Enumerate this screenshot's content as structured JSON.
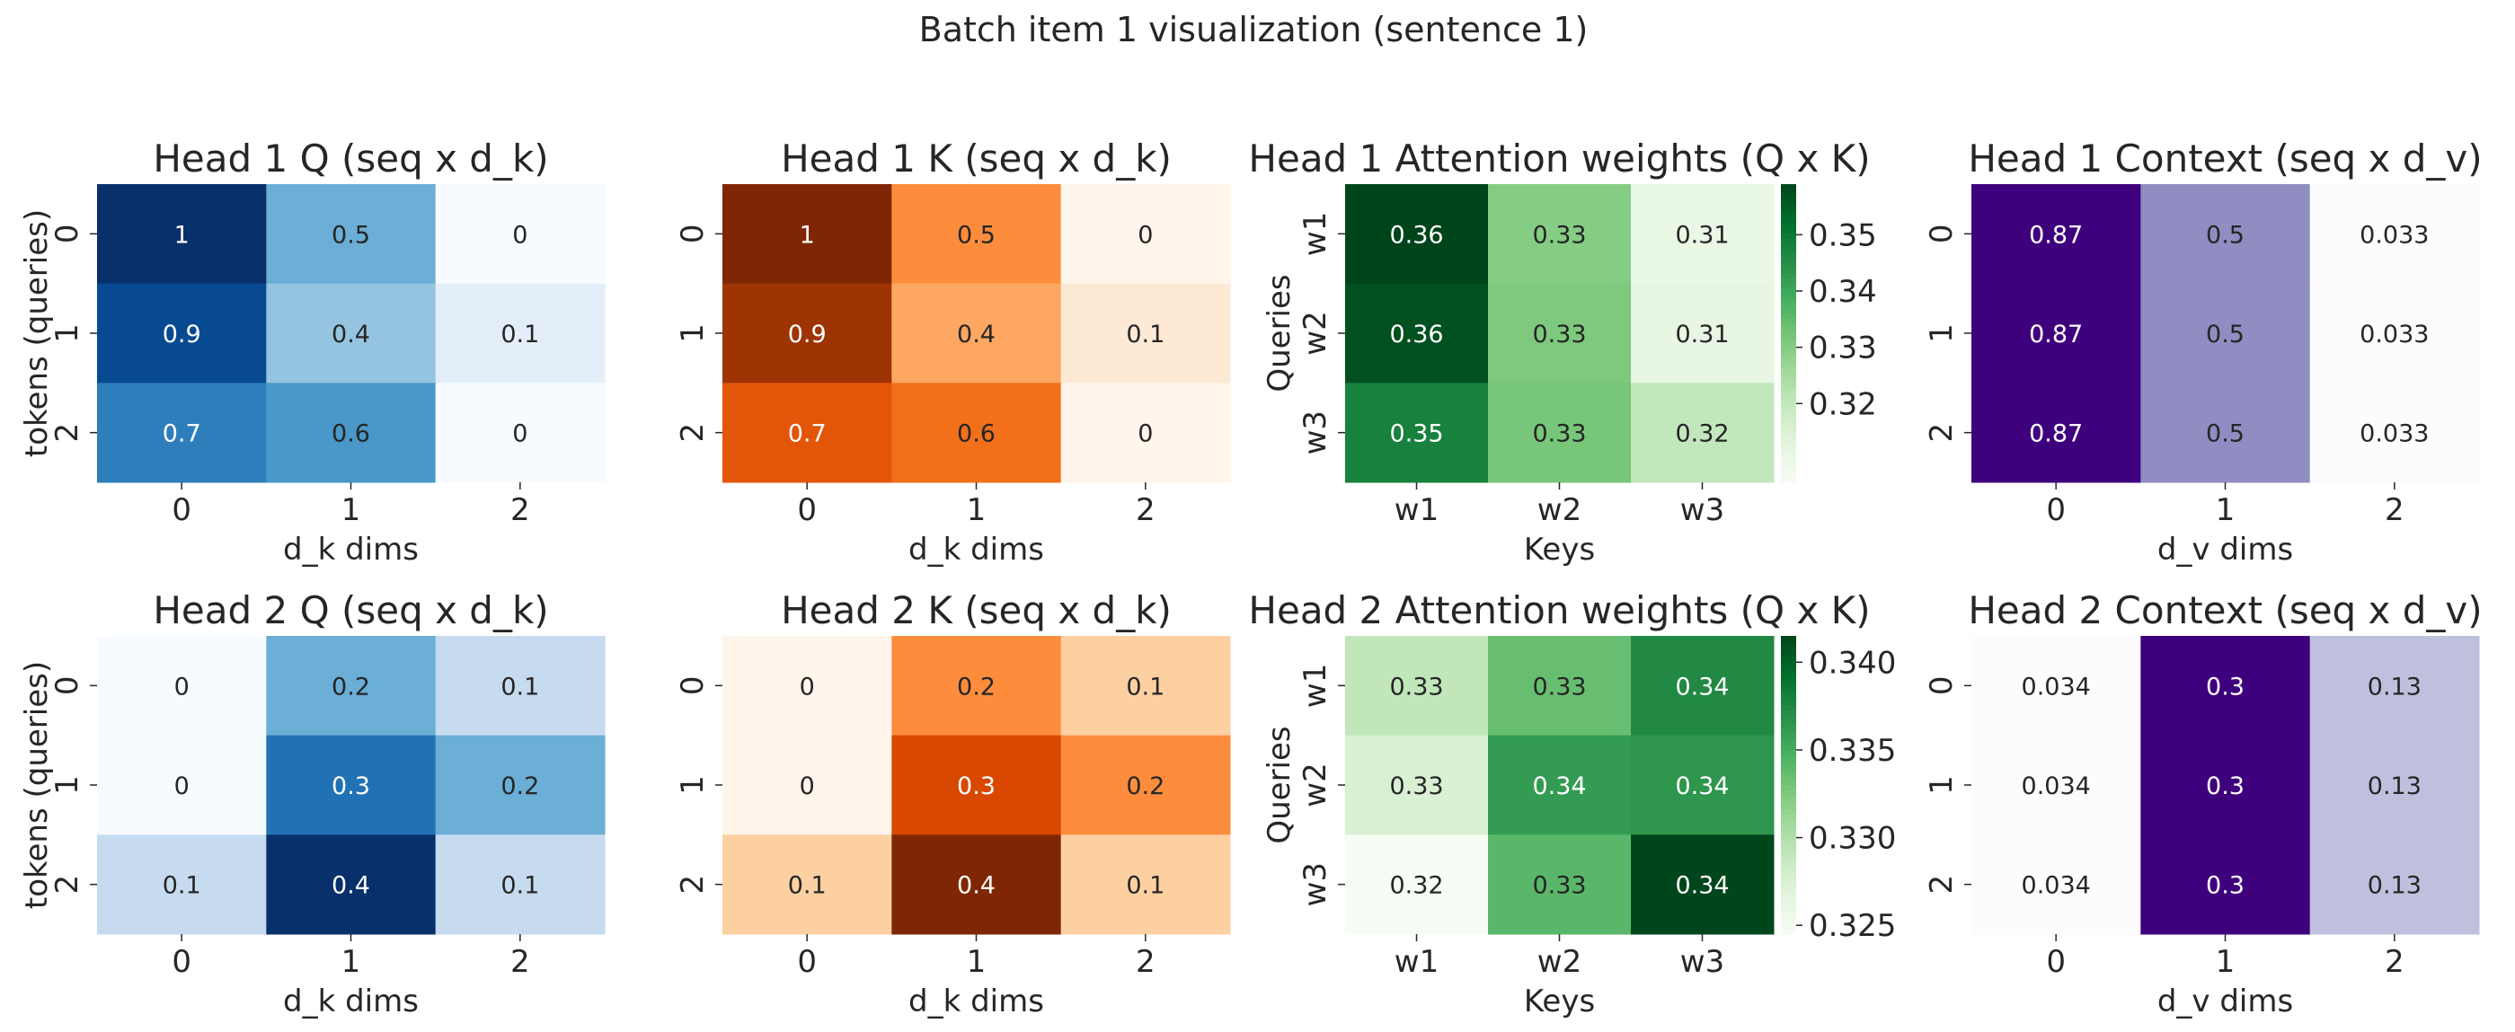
{
  "figure": {
    "suptitle": "Batch item 1 visualization (sentence 1)"
  },
  "chart_data": [
    {
      "type": "heatmap",
      "title": "Head 1 Q (seq x d_k)",
      "xlabel": "d_k dims",
      "ylabel": "tokens (queries)",
      "x_ticks": [
        "0",
        "1",
        "2"
      ],
      "y_ticks": [
        "0",
        "1",
        "2"
      ],
      "colormap": "Blues",
      "vmin": 0,
      "vmax": 1,
      "values": [
        [
          1,
          0.5,
          0
        ],
        [
          0.9,
          0.4,
          0.1
        ],
        [
          0.7,
          0.6,
          0
        ]
      ],
      "labels": [
        [
          "1",
          "0.5",
          "0"
        ],
        [
          "0.9",
          "0.4",
          "0.1"
        ],
        [
          "0.7",
          "0.6",
          "0"
        ]
      ]
    },
    {
      "type": "heatmap",
      "title": "Head 1 K (seq x d_k)",
      "xlabel": "d_k dims",
      "ylabel": "",
      "x_ticks": [
        "0",
        "1",
        "2"
      ],
      "y_ticks": [
        "0",
        "1",
        "2"
      ],
      "colormap": "Oranges",
      "vmin": 0,
      "vmax": 1,
      "values": [
        [
          1,
          0.5,
          0
        ],
        [
          0.9,
          0.4,
          0.1
        ],
        [
          0.7,
          0.6,
          0
        ]
      ],
      "labels": [
        [
          "1",
          "0.5",
          "0"
        ],
        [
          "0.9",
          "0.4",
          "0.1"
        ],
        [
          "0.7",
          "0.6",
          "0"
        ]
      ]
    },
    {
      "type": "heatmap",
      "title": "Head 1 Attention weights (Q x K)",
      "xlabel": "Keys",
      "ylabel": "Queries",
      "x_ticks": [
        "w1",
        "w2",
        "w3"
      ],
      "y_ticks": [
        "w1",
        "w2",
        "w3"
      ],
      "colormap": "Greens",
      "vmin": 0.306,
      "vmax": 0.359,
      "values": [
        [
          0.359,
          0.33,
          0.311
        ],
        [
          0.357,
          0.331,
          0.312
        ],
        [
          0.348,
          0.332,
          0.32
        ]
      ],
      "labels": [
        [
          "0.36",
          "0.33",
          "0.31"
        ],
        [
          "0.36",
          "0.33",
          "0.31"
        ],
        [
          "0.35",
          "0.33",
          "0.32"
        ]
      ],
      "colorbar": {
        "ticks": [
          0.32,
          0.33,
          0.34,
          0.35
        ],
        "tick_labels": [
          "0.32",
          "0.33",
          "0.34",
          "0.35"
        ]
      }
    },
    {
      "type": "heatmap",
      "title": "Head 1 Context (seq x d_v)",
      "xlabel": "d_v dims",
      "ylabel": "",
      "x_ticks": [
        "0",
        "1",
        "2"
      ],
      "y_ticks": [
        "0",
        "1",
        "2"
      ],
      "colormap": "Purples",
      "vmin": 0.033,
      "vmax": 0.87,
      "values": [
        [
          0.87,
          0.5,
          0.033
        ],
        [
          0.87,
          0.5,
          0.033
        ],
        [
          0.87,
          0.5,
          0.033
        ]
      ],
      "labels": [
        [
          "0.87",
          "0.5",
          "0.033"
        ],
        [
          "0.87",
          "0.5",
          "0.033"
        ],
        [
          "0.87",
          "0.5",
          "0.033"
        ]
      ]
    },
    {
      "type": "heatmap",
      "title": "Head 2 Q (seq x d_k)",
      "xlabel": "d_k dims",
      "ylabel": "tokens (queries)",
      "x_ticks": [
        "0",
        "1",
        "2"
      ],
      "y_ticks": [
        "0",
        "1",
        "2"
      ],
      "colormap": "Blues",
      "vmin": 0,
      "vmax": 0.4,
      "values": [
        [
          0,
          0.2,
          0.1
        ],
        [
          0,
          0.3,
          0.2
        ],
        [
          0.1,
          0.4,
          0.1
        ]
      ],
      "labels": [
        [
          "0",
          "0.2",
          "0.1"
        ],
        [
          "0",
          "0.3",
          "0.2"
        ],
        [
          "0.1",
          "0.4",
          "0.1"
        ]
      ]
    },
    {
      "type": "heatmap",
      "title": "Head 2 K (seq x d_k)",
      "xlabel": "d_k dims",
      "ylabel": "",
      "x_ticks": [
        "0",
        "1",
        "2"
      ],
      "y_ticks": [
        "0",
        "1",
        "2"
      ],
      "colormap": "Oranges",
      "vmin": 0,
      "vmax": 0.4,
      "values": [
        [
          0,
          0.2,
          0.1
        ],
        [
          0,
          0.3,
          0.2
        ],
        [
          0.1,
          0.4,
          0.1
        ]
      ],
      "labels": [
        [
          "0",
          "0.2",
          "0.1"
        ],
        [
          "0",
          "0.3",
          "0.2"
        ],
        [
          "0.1",
          "0.4",
          "0.1"
        ]
      ]
    },
    {
      "type": "heatmap",
      "title": "Head 2 Attention weights (Q x K)",
      "xlabel": "Keys",
      "ylabel": "Queries",
      "x_ticks": [
        "w1",
        "w2",
        "w3"
      ],
      "y_ticks": [
        "w1",
        "w2",
        "w3"
      ],
      "colormap": "Greens",
      "vmin": 0.3245,
      "vmax": 0.3415,
      "values": [
        [
          0.3291,
          0.3335,
          0.3374
        ],
        [
          0.3275,
          0.3361,
          0.3365
        ],
        [
          0.3245,
          0.3341,
          0.3414
        ]
      ],
      "labels": [
        [
          "0.33",
          "0.33",
          "0.34"
        ],
        [
          "0.33",
          "0.34",
          "0.34"
        ],
        [
          "0.32",
          "0.33",
          "0.34"
        ]
      ],
      "colorbar": {
        "ticks": [
          0.325,
          0.33,
          0.335,
          0.34
        ],
        "tick_labels": [
          "0.325",
          "0.330",
          "0.335",
          "0.340"
        ]
      }
    },
    {
      "type": "heatmap",
      "title": "Head 2 Context (seq x d_v)",
      "xlabel": "d_v dims",
      "ylabel": "",
      "x_ticks": [
        "0",
        "1",
        "2"
      ],
      "y_ticks": [
        "0",
        "1",
        "2"
      ],
      "colormap": "Purples",
      "vmin": 0.034,
      "vmax": 0.3,
      "values": [
        [
          0.034,
          0.3,
          0.13
        ],
        [
          0.034,
          0.3,
          0.13
        ],
        [
          0.034,
          0.3,
          0.13
        ]
      ],
      "labels": [
        [
          "0.034",
          "0.3",
          "0.13"
        ],
        [
          "0.034",
          "0.3",
          "0.13"
        ],
        [
          "0.034",
          "0.3",
          "0.13"
        ]
      ]
    }
  ]
}
